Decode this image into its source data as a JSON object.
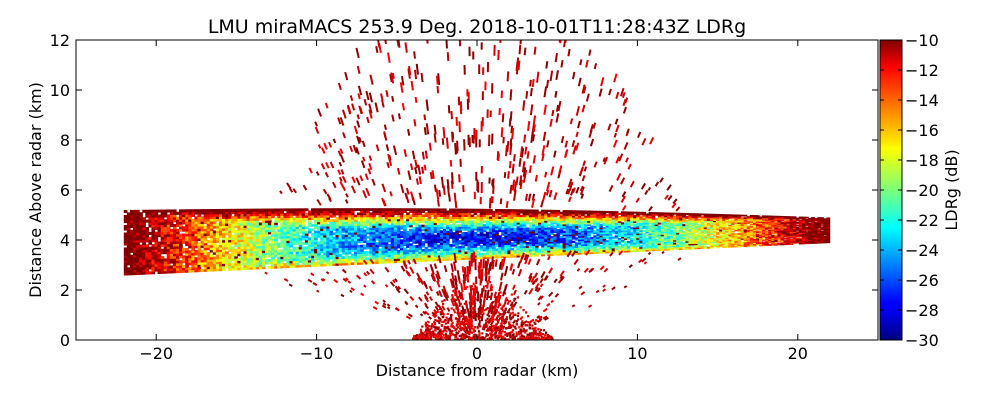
{
  "chart_data": {
    "type": "heatmap",
    "title": "LMU miraMACS 253.9 Deg. 2018-10-01T11:28:43Z  LDRg",
    "xlabel": "Distance from radar (km)",
    "ylabel": "Distance Above radar  (km)",
    "xlim": [
      -25,
      25
    ],
    "ylim": [
      0,
      12
    ],
    "xticks": [
      -20,
      -10,
      0,
      10,
      20
    ],
    "xtick_labels": [
      "−20",
      "−10",
      "0",
      "10",
      "20"
    ],
    "yticks": [
      0,
      2,
      4,
      6,
      8,
      10,
      12
    ],
    "ytick_labels": [
      "0",
      "2",
      "4",
      "6",
      "8",
      "10",
      "12"
    ],
    "colorbar": {
      "label": "LDRg (dB)",
      "range": [
        -30,
        -10
      ],
      "ticks": [
        -30,
        -28,
        -26,
        -24,
        -22,
        -20,
        -18,
        -16,
        -14,
        -12,
        -10
      ],
      "tick_labels": [
        "−30",
        "−28",
        "−26",
        "−24",
        "−22",
        "−20",
        "−18",
        "−16",
        "−14",
        "−12",
        "−10"
      ],
      "colormap": "jet"
    },
    "features": {
      "cloud_layer": {
        "x_range_km": [
          -22,
          22
        ],
        "base_km_left": 2.6,
        "base_km_right": 3.9,
        "top_km_left": 5.2,
        "top_km_center": 5.3,
        "top_km_right": 4.9,
        "core_ldr_db": -28,
        "edge_ldr_db": -10
      },
      "near_radar_clutter": {
        "x_range_km": [
          -4,
          5
        ],
        "max_height_km": 3.5,
        "ldr_db": -10
      },
      "scattered_noise": {
        "ldr_db": -10,
        "max_range_km": 13
      }
    }
  }
}
